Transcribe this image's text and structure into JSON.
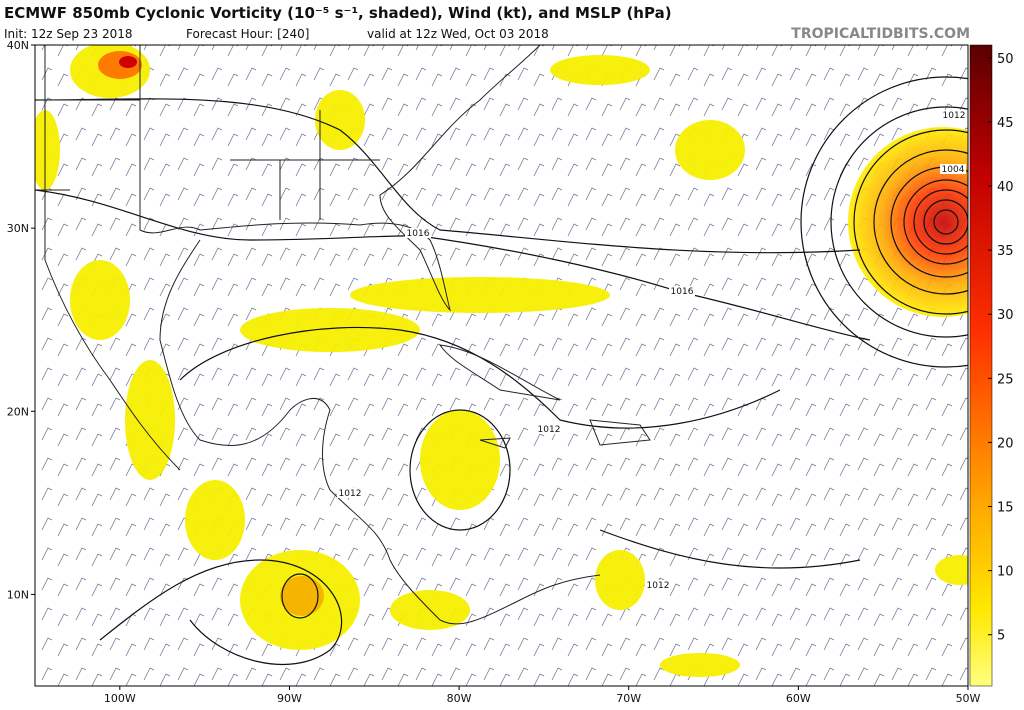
{
  "header": {
    "title": "ECMWF 850mb Cyclonic Vorticity (10⁻⁵ s⁻¹, shaded), Wind (kt), and MSLP (hPa)",
    "init": "Init: 12z Sep 23 2018",
    "forecast_hour": "Forecast Hour: [240]",
    "valid": "valid at 12z Wed, Oct 03 2018",
    "site": "TROPICALTIDBITS.COM"
  },
  "map": {
    "lon_lim": [
      -105,
      -50
    ],
    "lat_lim": [
      5,
      40
    ],
    "lat_ticks": [
      {
        "value": 40,
        "label": "40N"
      },
      {
        "value": 30,
        "label": "30N"
      },
      {
        "value": 20,
        "label": "20N"
      },
      {
        "value": 10,
        "label": "10N"
      }
    ],
    "lon_ticks": [
      {
        "value": -100,
        "label": "100W"
      },
      {
        "value": -90,
        "label": "90W"
      },
      {
        "value": -80,
        "label": "80W"
      },
      {
        "value": -70,
        "label": "70W"
      },
      {
        "value": -60,
        "label": "60W"
      },
      {
        "value": -50,
        "label": "50W"
      }
    ],
    "isobar_labels": [
      "1012",
      "1012",
      "1012",
      "1012",
      "1016",
      "1016",
      "1004"
    ]
  },
  "colorbar": {
    "range": [
      1,
      51
    ],
    "ticks": [
      5,
      10,
      15,
      20,
      25,
      30,
      35,
      40,
      45,
      50
    ]
  }
}
